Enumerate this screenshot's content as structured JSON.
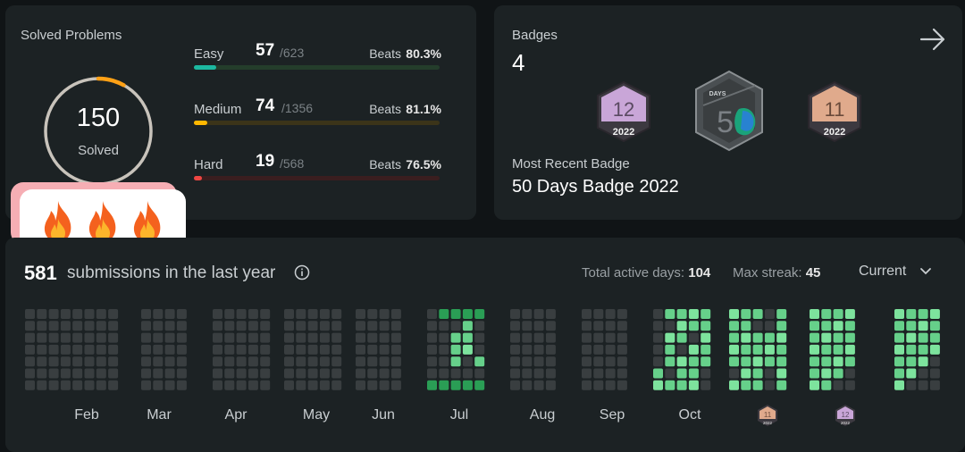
{
  "solved": {
    "title": "Solved Problems",
    "total": "150",
    "total_label": "Solved",
    "ring_progress": 0.08,
    "rows": [
      {
        "name": "Easy",
        "solved": "57",
        "total": "/623",
        "beats_label": "Beats",
        "beats": "80.3%",
        "progress": 0.0915,
        "bar_bg": "#243d2b",
        "bar_fill": "#1cb8a0"
      },
      {
        "name": "Medium",
        "solved": "74",
        "total": "/1356",
        "beats_label": "Beats",
        "beats": "81.1%",
        "progress": 0.0546,
        "bar_bg": "#3b3419",
        "bar_fill": "#ffb800"
      },
      {
        "name": "Hard",
        "solved": "19",
        "total": "/568",
        "beats_label": "Beats",
        "beats": "76.5%",
        "progress": 0.0335,
        "bar_bg": "#3a1e1f",
        "bar_fill": "#ef4743"
      }
    ],
    "sticker": [
      "fire-icon",
      "fire-icon",
      "fire-icon"
    ]
  },
  "badges": {
    "label": "Badges",
    "count": "4",
    "recent_label": "Most Recent Badge",
    "recent_name": "50 Days Badge 2022",
    "items": [
      {
        "kind": "monthly",
        "number": "12",
        "year": "2022",
        "color": "#c9a6d8"
      },
      {
        "kind": "days",
        "number": "50",
        "caption": "DAYS"
      },
      {
        "kind": "monthly",
        "number": "11",
        "year": "2022",
        "color": "#e0aa8c"
      }
    ]
  },
  "submissions": {
    "count": "581",
    "label": "submissions in the last year",
    "active_days_label": "Total active days:",
    "active_days": "104",
    "max_streak_label": "Max streak:",
    "max_streak": "45",
    "period": "Current",
    "months": [
      "Feb",
      "Mar",
      "Apr",
      "May",
      "Jun",
      "Jul",
      "Aug",
      "Sep",
      "Oct"
    ],
    "mini_badges": [
      {
        "number": "11",
        "year": "2022",
        "color": "#e0aa8c"
      },
      {
        "number": "12",
        "year": "2022",
        "color": "#c9a6d8"
      }
    ]
  },
  "colors": {
    "empty": "#393e40",
    "level1": "#16683a",
    "level2": "#2a9e55",
    "level3": "#66d08a",
    "level4": "#7de39d"
  }
}
